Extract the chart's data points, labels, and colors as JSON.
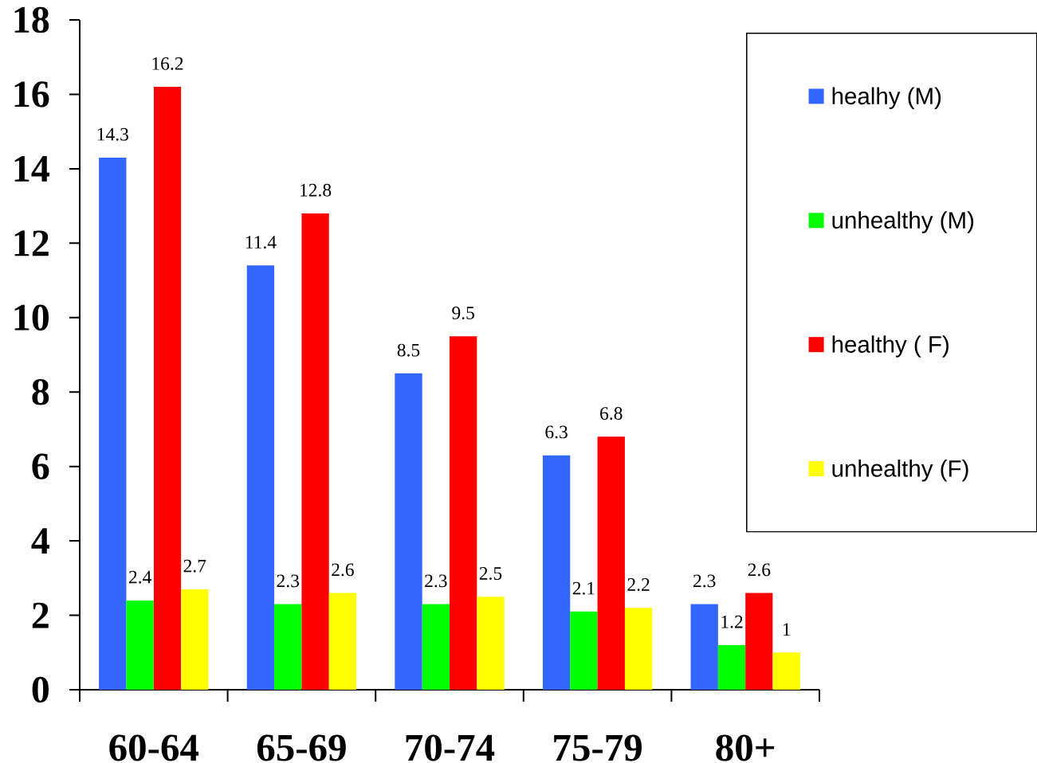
{
  "chart_data": {
    "type": "bar",
    "categories": [
      "60-64",
      "65-69",
      "70-74",
      "75-79",
      "80+"
    ],
    "series": [
      {
        "name": "healhy (M)",
        "color": "#3366ff",
        "values": [
          14.3,
          11.4,
          8.5,
          6.3,
          2.3
        ]
      },
      {
        "name": "unhealthy (M)",
        "color": "#00ff00",
        "values": [
          2.4,
          2.3,
          2.3,
          2.1,
          1.2
        ]
      },
      {
        "name": "healthy ( F)",
        "color": "#ff0000",
        "values": [
          16.2,
          12.8,
          9.5,
          6.8,
          2.6
        ]
      },
      {
        "name": "unhealthy (F)",
        "color": "#ffff00",
        "values": [
          2.7,
          2.6,
          2.5,
          2.2,
          1
        ]
      }
    ],
    "ylim": [
      0,
      18
    ],
    "yticks": [
      0,
      2,
      4,
      6,
      8,
      10,
      12,
      14,
      16,
      18
    ],
    "data_labels": true,
    "legend": "top right"
  }
}
